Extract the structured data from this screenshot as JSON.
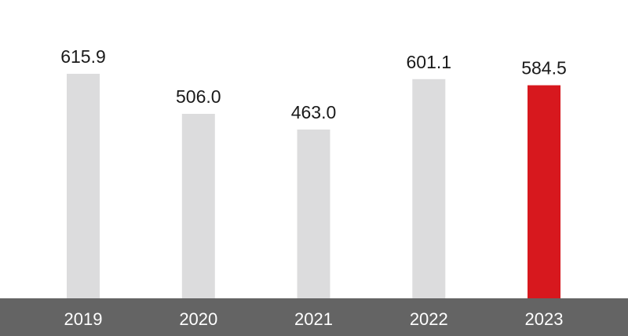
{
  "chart_data": {
    "type": "bar",
    "categories": [
      "2019",
      "2020",
      "2021",
      "2022",
      "2023"
    ],
    "values": [
      615.9,
      506.0,
      463.0,
      601.1,
      584.5
    ],
    "value_labels": [
      "615.9",
      "506.0",
      "463.0",
      "601.1",
      "584.5"
    ],
    "title": "",
    "xlabel": "",
    "ylabel": "",
    "ylim": [
      0,
      650
    ],
    "grid": false,
    "legend": "none",
    "colors": {
      "default_bar": "#dcdcdd",
      "highlight_bar": "#d7181e",
      "axis_band": "#646464",
      "tick_label": "#ffffff",
      "value_label": "#1a1a1a"
    },
    "highlight_category": "2023"
  }
}
